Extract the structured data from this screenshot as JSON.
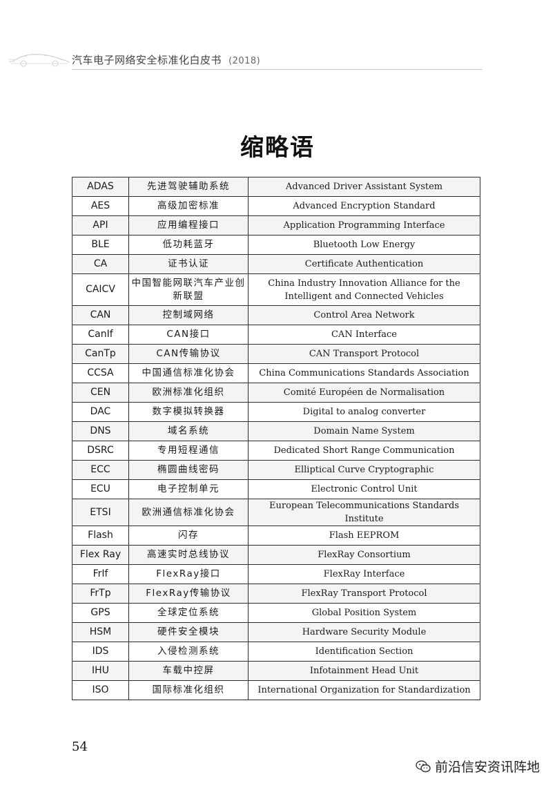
{
  "header": {
    "title": "汽车电子网络安全标准化白皮书",
    "year": "(2018)"
  },
  "page_title": "缩略语",
  "table": {
    "rows": [
      {
        "abbr": "ADAS",
        "cn": "先进驾驶辅助系统",
        "en": "Advanced Driver Assistant System"
      },
      {
        "abbr": "AES",
        "cn": "高级加密标准",
        "en": "Advanced Encryption Standard"
      },
      {
        "abbr": "API",
        "cn": "应用编程接口",
        "en": "Application Programming Interface"
      },
      {
        "abbr": "BLE",
        "cn": "低功耗蓝牙",
        "en": "Bluetooth Low Energy"
      },
      {
        "abbr": "CA",
        "cn": "证书认证",
        "en": "Certificate Authentication"
      },
      {
        "abbr": "CAICV",
        "cn": "中国智能网联汽车产业创新联盟",
        "en": "China Industry Innovation Alliance for the Intelligent and Connected Vehicles"
      },
      {
        "abbr": "CAN",
        "cn": "控制域网络",
        "en": "Control  Area Network"
      },
      {
        "abbr": "CanIf",
        "cn": "CAN接口",
        "en": "CAN Interface"
      },
      {
        "abbr": "CanTp",
        "cn": "CAN传输协议",
        "en": "CAN Transport Protocol"
      },
      {
        "abbr": "CCSA",
        "cn": "中国通信标准化协会",
        "en": "China Communications Standards Association"
      },
      {
        "abbr": "CEN",
        "cn": "欧洲标准化组织",
        "en": "Comité Européen de Normalisation"
      },
      {
        "abbr": "DAC",
        "cn": "数字模拟转换器",
        "en": "Digital to analog converter"
      },
      {
        "abbr": "DNS",
        "cn": "域名系统",
        "en": "Domain Name System"
      },
      {
        "abbr": "DSRC",
        "cn": "专用短程通信",
        "en": "Dedicated Short Range Communication"
      },
      {
        "abbr": "ECC",
        "cn": "椭圆曲线密码",
        "en": "Elliptical Curve Cryptographic"
      },
      {
        "abbr": "ECU",
        "cn": "电子控制单元",
        "en": "Electronic Control Unit"
      },
      {
        "abbr": "ETSI",
        "cn": "欧洲通信标准化协会",
        "en": "European Telecommunications Standards Institute"
      },
      {
        "abbr": "Flash",
        "cn": "闪存",
        "en": "Flash EEPROM"
      },
      {
        "abbr": "Flex Ray",
        "cn": "高速实时总线协议",
        "en": "FlexRay Consortium"
      },
      {
        "abbr": "FrIf",
        "cn": "FlexRay接口",
        "en": "FlexRay Interface"
      },
      {
        "abbr": "FrTp",
        "cn": "FlexRay传输协议",
        "en": "FlexRay Transport Protocol"
      },
      {
        "abbr": "GPS",
        "cn": "全球定位系统",
        "en": "Global Position System"
      },
      {
        "abbr": "HSM",
        "cn": "硬件安全模块",
        "en": "Hardware Security Module"
      },
      {
        "abbr": "IDS",
        "cn": "入侵检测系统",
        "en": "Identification Section"
      },
      {
        "abbr": "IHU",
        "cn": "车载中控屏",
        "en": "Infotainment Head Unit"
      },
      {
        "abbr": "ISO",
        "cn": "国际标准化组织",
        "en": "International Organization for Standardization"
      }
    ]
  },
  "page_number": "54",
  "watermark": {
    "icon": "wechat-icon",
    "text": "前沿信安资讯阵地"
  },
  "colors": {
    "text": "#1a1a1a",
    "rule": "#c8c8c8",
    "border": "#2a2a2a"
  }
}
